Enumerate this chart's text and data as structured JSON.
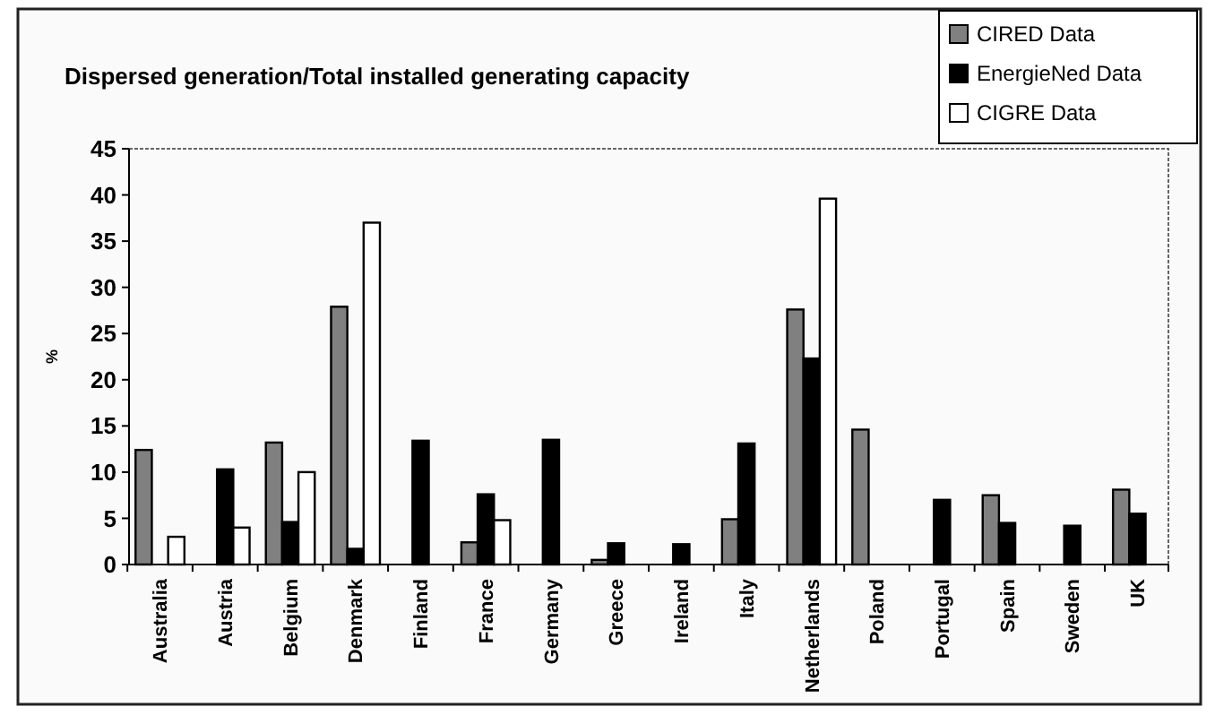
{
  "chart_data": {
    "type": "bar",
    "title": "Dispersed generation/Total installed generating capacity",
    "ylabel": "%",
    "categories": [
      "Australia",
      "Austria",
      "Belgium",
      "Denmark",
      "Finland",
      "France",
      "Germany",
      "Greece",
      "Ireland",
      "Italy",
      "Netherlands",
      "Poland",
      "Portugal",
      "Spain",
      "Sweden",
      "UK"
    ],
    "series": [
      {
        "name": "CIRED Data",
        "color": "#808080",
        "values": [
          12.4,
          null,
          13.2,
          27.9,
          null,
          2.4,
          null,
          0.5,
          null,
          4.9,
          27.6,
          14.6,
          null,
          7.5,
          null,
          8.1
        ]
      },
      {
        "name": "EnergieNed Data",
        "color": "#000000",
        "values": [
          null,
          10.3,
          4.6,
          1.7,
          13.4,
          7.6,
          13.5,
          2.3,
          2.2,
          13.1,
          22.3,
          null,
          7.0,
          4.5,
          4.2,
          5.5
        ]
      },
      {
        "name": "CIGRE Data",
        "color": "#ffffff",
        "values": [
          3,
          4,
          10,
          37,
          null,
          4.8,
          null,
          null,
          null,
          null,
          39.6,
          null,
          null,
          null,
          null,
          null
        ]
      }
    ],
    "ylim": [
      0,
      45
    ],
    "yticks": [
      0,
      5,
      10,
      15,
      20,
      25,
      30,
      35,
      40,
      45
    ],
    "grid": false,
    "legend": "top right"
  }
}
